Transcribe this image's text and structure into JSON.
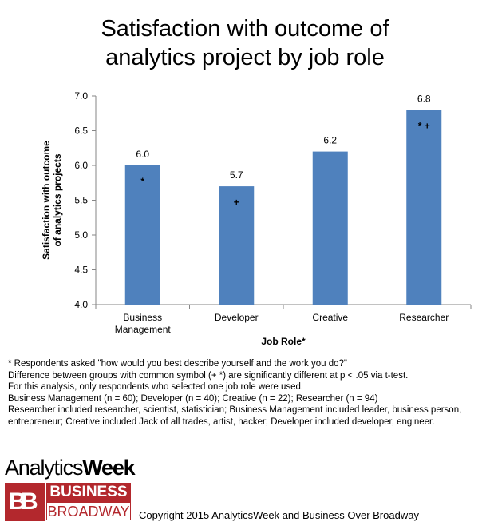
{
  "title_lines": [
    "Satisfaction with outcome of",
    "analytics project by job role"
  ],
  "chart_data": {
    "type": "bar",
    "title": "Satisfaction with outcome of analytics project by job role",
    "categories": [
      "Business Management",
      "Developer",
      "Creative",
      "Researcher"
    ],
    "category_lines": [
      [
        "Business",
        "Management"
      ],
      [
        "Developer"
      ],
      [
        "Creative"
      ],
      [
        "Researcher"
      ]
    ],
    "values": [
      6.0,
      5.7,
      6.2,
      6.8
    ],
    "data_labels": [
      "6.0",
      "5.7",
      "6.2",
      "6.8"
    ],
    "symbols": [
      "*",
      "+",
      "",
      "*  +"
    ],
    "xlabel": "Job Role*",
    "ylabel_lines": [
      "Satisfaction with outcome",
      "of analytics projects"
    ],
    "ylim": [
      4.0,
      7.0
    ],
    "yticks": [
      "4.0",
      "4.5",
      "5.0",
      "5.5",
      "6.0",
      "6.5",
      "7.0"
    ],
    "bar_color": "#4f81bd",
    "grid": false,
    "legend": "none"
  },
  "notes": [
    "* Respondents asked \"how would you best describe yourself and the work you do?\"",
    "Difference between groups with common symbol (+ *) are significantly different at  p < .05 via t-test.",
    " For this analysis, only respondents who selected one job role were used.",
    "Business Management (n = 60); Developer (n = 40); Creative (n = 22); Researcher (n = 94)",
    "Researcher included researcher, scientist, statistician; Business Management included leader, business person, entrepreneur; Creative included Jack of all trades, artist, hacker; Developer included developer, engineer."
  ],
  "brand": {
    "analytics": "Analytics",
    "week": "Week",
    "bb_letters": [
      "B",
      "B"
    ],
    "business": "BUSINESS",
    "broadway": "BROADWAY",
    "copyright": "Copyright 2015 AnalyticsWeek and Business Over Broadway"
  }
}
